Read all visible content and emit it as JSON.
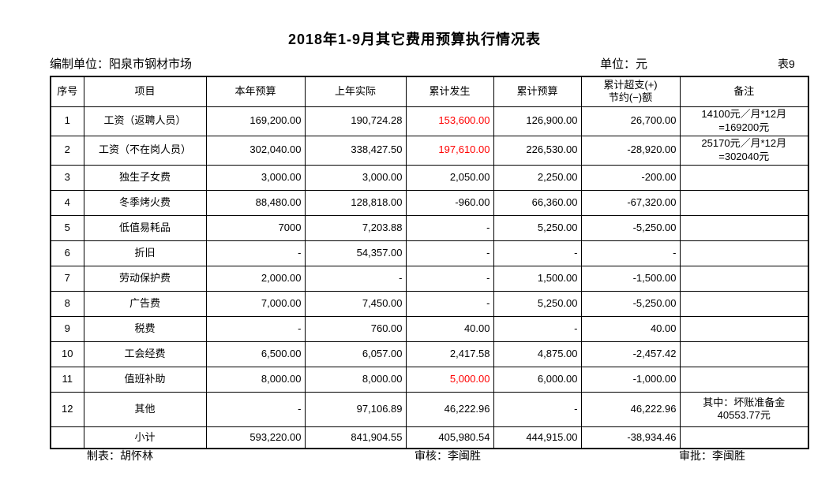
{
  "title": "2018年1-9月其它费用预算执行情况表",
  "meta": {
    "prepared_by": "编制单位：阳泉市钢材市场",
    "unit": "单位：元",
    "sheet_no": "表9"
  },
  "colors": {
    "highlight_red": "#ff0000",
    "text": "#000000",
    "background": "#ffffff"
  },
  "table": {
    "headers": {
      "no": "序号",
      "item": "项目",
      "annual_budget": "本年预算",
      "last_year_actual": "上年实际",
      "cumulative_actual": "累计发生",
      "cumulative_budget": "累计预算",
      "variance": "累计超支(+)\n节约(−)额",
      "remark": "备注"
    },
    "rows": [
      {
        "no": "1",
        "item": "工资（返聘人员）",
        "annual_budget": "169,200.00",
        "last_year_actual": "190,724.28",
        "cumulative_actual": "153,600.00",
        "cumulative_budget": "126,900.00",
        "variance": "26,700.00",
        "remark": "14100元／月*12月\n=169200元",
        "cumulative_actual_red": true,
        "no_bold": true
      },
      {
        "no": "2",
        "item": "工资（不在岗人员）",
        "annual_budget": "302,040.00",
        "last_year_actual": "338,427.50",
        "cumulative_actual": "197,610.00",
        "cumulative_budget": "226,530.00",
        "variance": "-28,920.00",
        "remark": "25170元／月*12月\n=302040元",
        "cumulative_actual_red": true,
        "no_bold": true
      },
      {
        "no": "3",
        "item": "独生子女费",
        "annual_budget": "3,000.00",
        "last_year_actual": "3,000.00",
        "cumulative_actual": "2,050.00",
        "cumulative_budget": "2,250.00",
        "variance": "-200.00",
        "remark": ""
      },
      {
        "no": "4",
        "item": "冬季烤火费",
        "annual_budget": "88,480.00",
        "last_year_actual": "128,818.00",
        "cumulative_actual": "-960.00",
        "cumulative_budget": "66,360.00",
        "variance": "-67,320.00",
        "remark": ""
      },
      {
        "no": "5",
        "item": "低值易耗品",
        "annual_budget": "7000",
        "last_year_actual": "7,203.88",
        "cumulative_actual": "-",
        "cumulative_budget": "5,250.00",
        "variance": "-5,250.00",
        "remark": ""
      },
      {
        "no": "6",
        "item": "折旧",
        "annual_budget": "-",
        "last_year_actual": "54,357.00",
        "cumulative_actual": "-",
        "cumulative_budget": "-",
        "variance": "-",
        "remark": ""
      },
      {
        "no": "7",
        "item": "劳动保护费",
        "annual_budget": "2,000.00",
        "last_year_actual": "-",
        "cumulative_actual": "-",
        "cumulative_budget": "1,500.00",
        "variance": "-1,500.00",
        "remark": ""
      },
      {
        "no": "8",
        "item": "广告费",
        "annual_budget": "7,000.00",
        "last_year_actual": "7,450.00",
        "cumulative_actual": "-",
        "cumulative_budget": "5,250.00",
        "variance": "-5,250.00",
        "remark": ""
      },
      {
        "no": "9",
        "item": "税费",
        "annual_budget": "-",
        "last_year_actual": "760.00",
        "cumulative_actual": "40.00",
        "cumulative_budget": "-",
        "variance": "40.00",
        "remark": ""
      },
      {
        "no": "10",
        "item": "工会经费",
        "annual_budget": "6,500.00",
        "last_year_actual": "6,057.00",
        "cumulative_actual": "2,417.58",
        "cumulative_budget": "4,875.00",
        "variance": "-2,457.42",
        "remark": ""
      },
      {
        "no": "11",
        "item": "值班补助",
        "annual_budget": "8,000.00",
        "last_year_actual": "8,000.00",
        "cumulative_actual": "5,000.00",
        "cumulative_budget": "6,000.00",
        "variance": "-1,000.00",
        "remark": "",
        "cumulative_actual_red": true
      },
      {
        "no": "12",
        "item": "其他",
        "annual_budget": "-",
        "last_year_actual": "97,106.89",
        "cumulative_actual": "46,222.96",
        "cumulative_budget": "-",
        "variance": "46,222.96",
        "remark": "其中：坏账准备金\n40553.77元"
      },
      {
        "no": "",
        "item": "小计",
        "annual_budget": "593,220.00",
        "last_year_actual": "841,904.55",
        "cumulative_actual": "405,980.54",
        "cumulative_budget": "444,915.00",
        "variance": "-38,934.46",
        "remark": "",
        "is_subtotal": true
      }
    ]
  },
  "footer": {
    "prepared": "制表：胡怀林",
    "reviewed": "审核：李闽胜",
    "approved": "审批：李闽胜"
  }
}
